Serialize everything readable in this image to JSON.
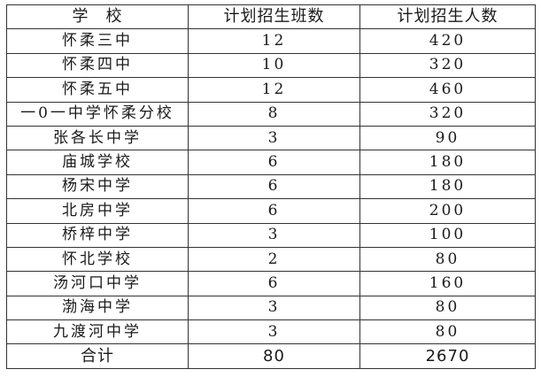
{
  "table": {
    "headers": [
      "学　校",
      "计划招生班数",
      "计划招生人数"
    ],
    "rows": [
      [
        "怀柔三中",
        "12",
        "420"
      ],
      [
        "怀柔四中",
        "10",
        "320"
      ],
      [
        "怀柔五中",
        "12",
        "460"
      ],
      [
        "一0一中学怀柔分校",
        "8",
        "320"
      ],
      [
        "张各长中学",
        "3",
        "90"
      ],
      [
        "庙城学校",
        "6",
        "180"
      ],
      [
        "杨宋中学",
        "6",
        "180"
      ],
      [
        "北房中学",
        "6",
        "200"
      ],
      [
        "桥梓中学",
        "3",
        "100"
      ],
      [
        "怀北学校",
        "2",
        "80"
      ],
      [
        "汤河口中学",
        "6",
        "160"
      ],
      [
        "渤海中学",
        "3",
        "80"
      ],
      [
        "九渡河中学",
        "3",
        "80"
      ]
    ],
    "total": [
      "合计",
      "80",
      "2670"
    ]
  }
}
